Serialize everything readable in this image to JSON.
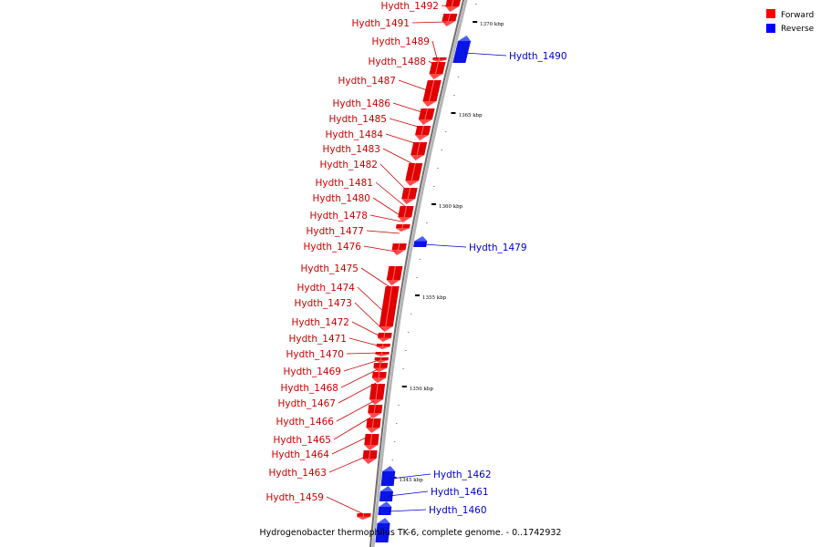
{
  "title": "Hydrogenobacter thermophilus TK-6, complete genome. - 0..1742932",
  "legend": [
    {
      "label": "Forward",
      "color": "#ff0000"
    },
    {
      "label": "Reverse",
      "color": "#0000ff"
    }
  ],
  "strand_colors": {
    "forward": "#e00000",
    "forward_light": "#ff4a4a",
    "reverse": "#0a14e6",
    "reverse_light": "#4b5cff",
    "label_forward": "#cc0000",
    "label_reverse": "#0000cc"
  },
  "ticks": [
    "1370 kbp",
    "1365 kbp",
    "1360 kbp",
    "1355 kbp",
    "1350 kbp",
    "1345 kbp"
  ],
  "genes_forward": [
    "Hydth_1492",
    "Hydth_1491",
    "Hydth_1489",
    "Hydth_1488",
    "Hydth_1487",
    "Hydth_1486",
    "Hydth_1485",
    "Hydth_1484",
    "Hydth_1483",
    "Hydth_1482",
    "Hydth_1481",
    "Hydth_1480",
    "Hydth_1478",
    "Hydth_1477",
    "Hydth_1476",
    "Hydth_1475",
    "Hydth_1474",
    "Hydth_1473",
    "Hydth_1472",
    "Hydth_1471",
    "Hydth_1470",
    "Hydth_1469",
    "Hydth_1468",
    "Hydth_1467",
    "Hydth_1466",
    "Hydth_1465",
    "Hydth_1464",
    "Hydth_1463",
    "Hydth_1459"
  ],
  "genes_reverse": [
    "Hydth_1490",
    "Hydth_1479",
    "Hydth_1462",
    "Hydth_1461",
    "Hydth_1460"
  ]
}
